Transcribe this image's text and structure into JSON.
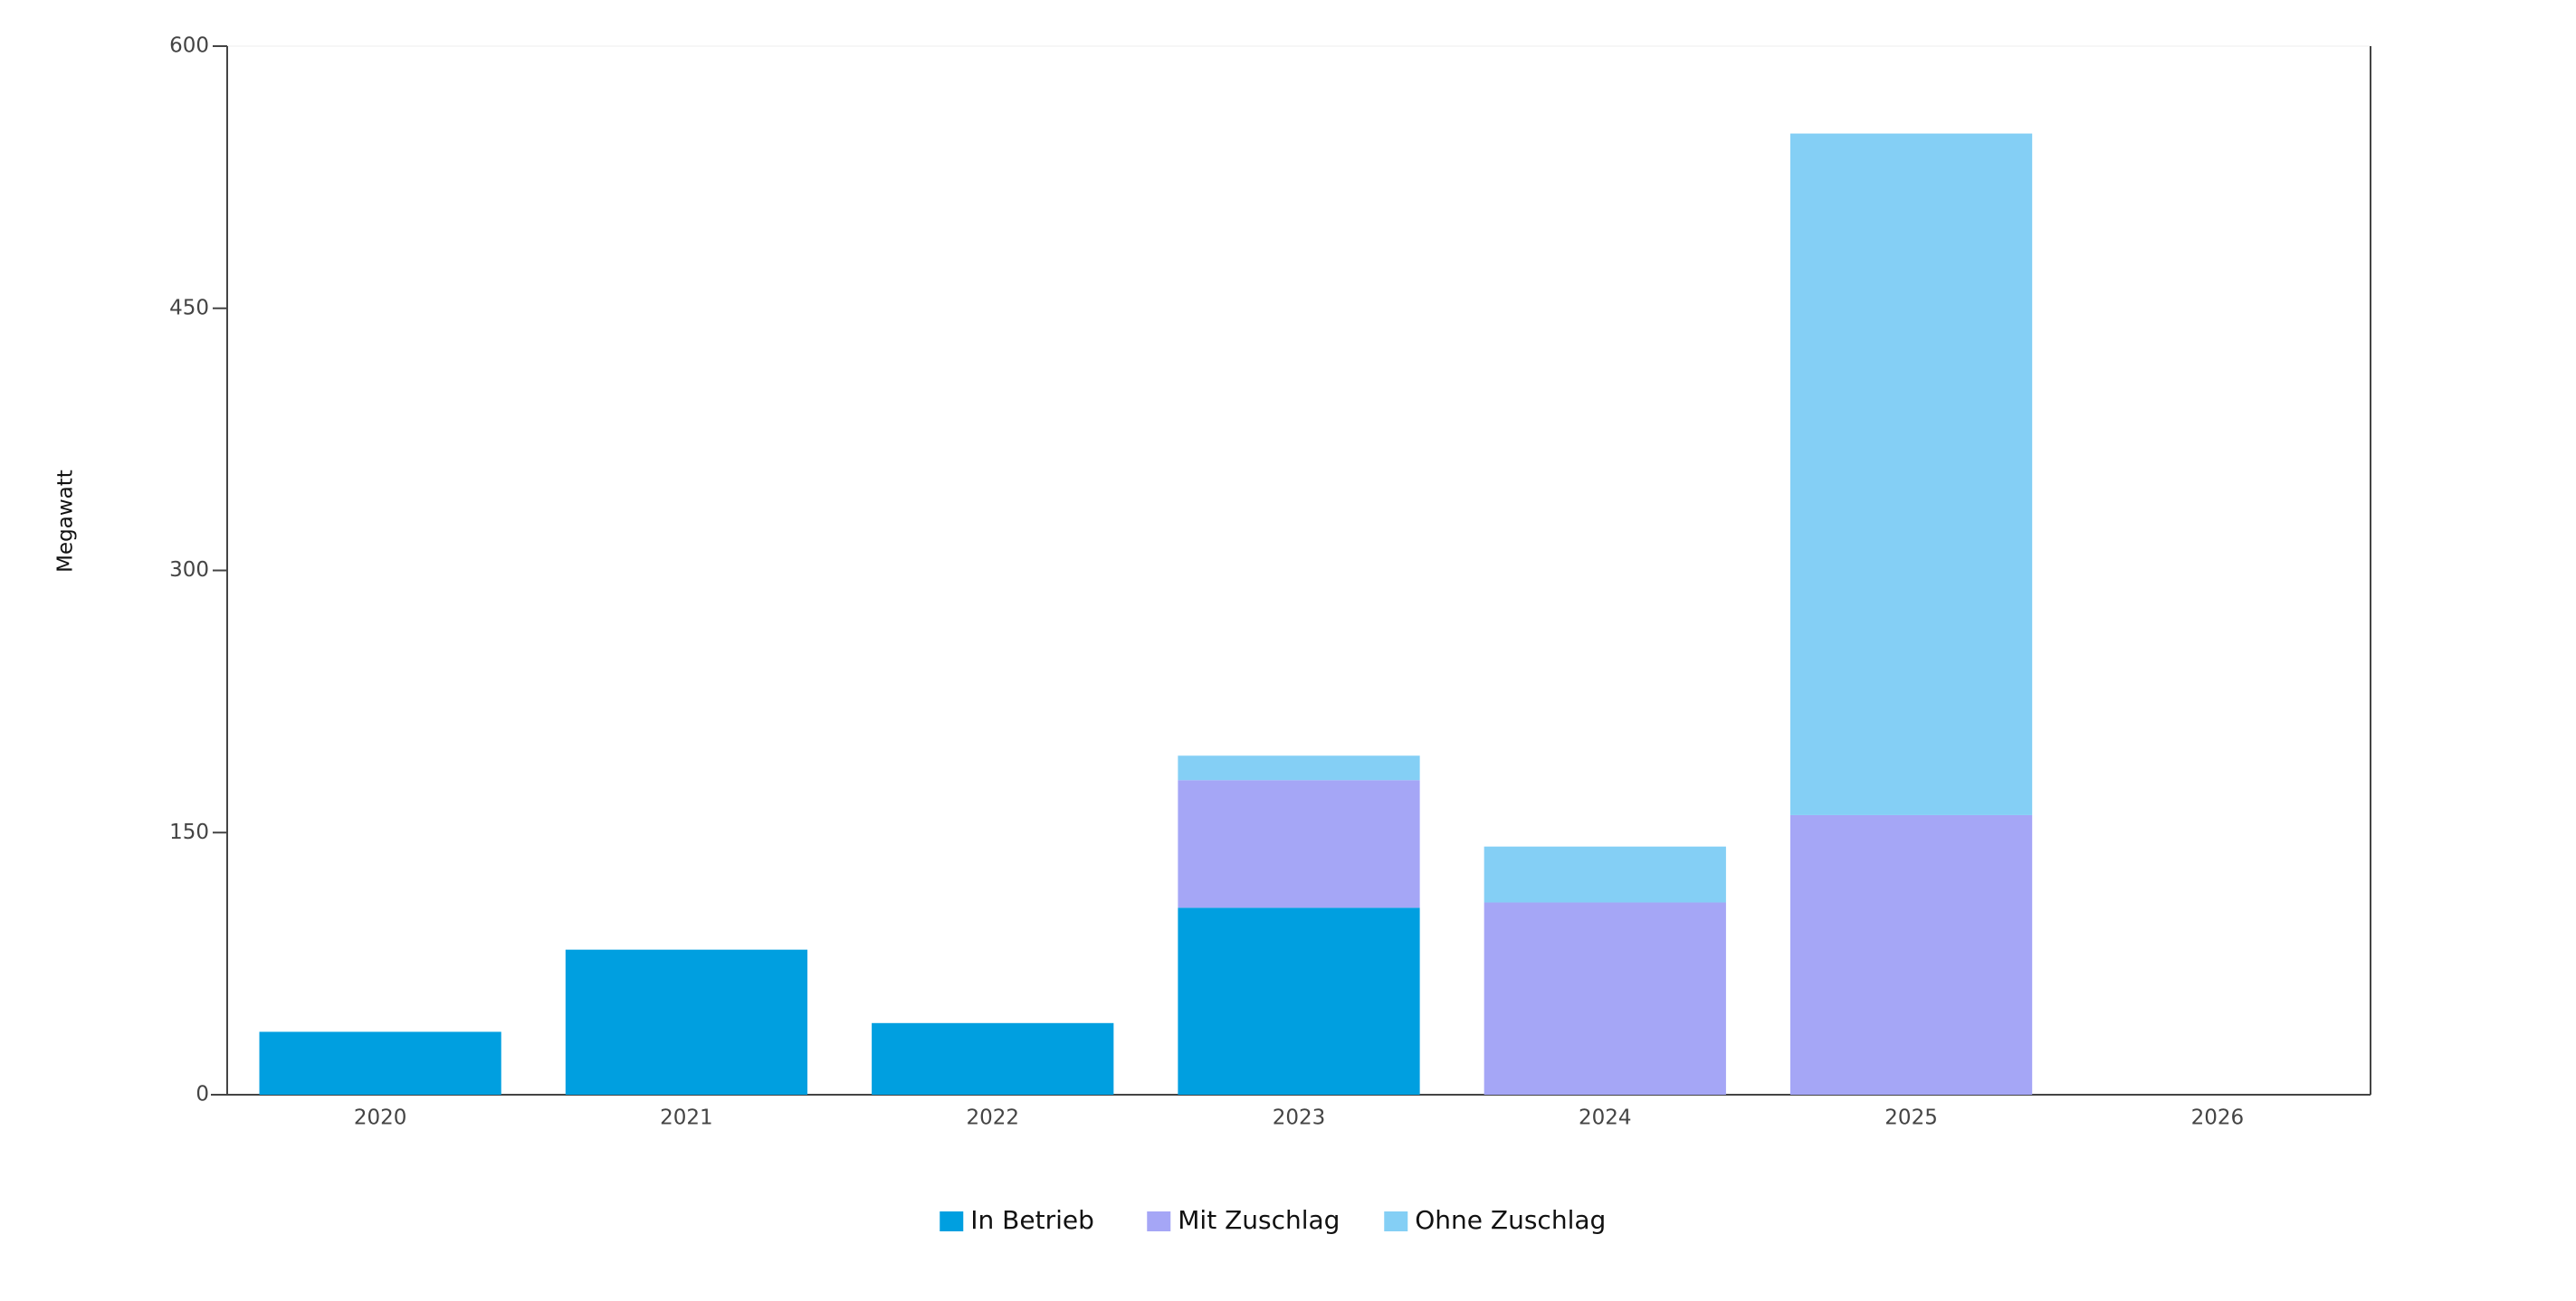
{
  "chart_data": {
    "type": "stacked-bar",
    "y_label": "Megawatt",
    "categories": [
      "2020",
      "2021",
      "2022",
      "2023",
      "2024",
      "2025",
      "2026"
    ],
    "series": [
      {
        "name": "In Betrieb",
        "color": "#009fe0",
        "values": [
          36,
          83,
          41,
          107,
          null,
          null,
          null
        ]
      },
      {
        "name": "Mit Zuschlag",
        "color": "#a5a6f6",
        "values": [
          null,
          null,
          null,
          73,
          110,
          160,
          null
        ]
      },
      {
        "name": "Ohne Zuschlag",
        "color": "#84cff5",
        "values": [
          null,
          null,
          null,
          14,
          32,
          390,
          null
        ]
      }
    ],
    "ylim": [
      0,
      600
    ],
    "yticks": [
      0,
      150,
      300,
      450,
      600
    ],
    "legend": "bottom"
  }
}
